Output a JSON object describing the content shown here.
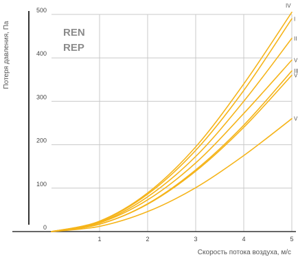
{
  "chart_data": {
    "type": "line",
    "xlabel": "Скорость потока воздуха, м/с",
    "ylabel": "Потеря давления, Па",
    "xlim": [
      0,
      5
    ],
    "ylim": [
      0,
      500
    ],
    "x_ticks": [
      "1",
      "2",
      "3",
      "4",
      "5"
    ],
    "y_ticks": [
      "0",
      "100",
      "200",
      "300",
      "400",
      "500"
    ],
    "grid": true,
    "annotation": [
      "REN",
      "REP"
    ],
    "line_color": "#f5b41a",
    "x": [
      0,
      1,
      2,
      3,
      4,
      5
    ],
    "series": [
      {
        "name": "IV",
        "values": [
          0,
          24,
          89,
          195,
          340,
          505
        ]
      },
      {
        "name": "I",
        "values": [
          0,
          23,
          86,
          187,
          325,
          490
        ]
      },
      {
        "name": "II",
        "values": [
          0,
          21,
          80,
          173,
          300,
          445
        ]
      },
      {
        "name": "V",
        "values": [
          0,
          20,
          73,
          158,
          272,
          395
        ]
      },
      {
        "name": "III",
        "values": [
          0,
          17,
          64,
          142,
          245,
          370
        ]
      },
      {
        "name": "VI",
        "values": [
          0,
          17,
          63,
          139,
          240,
          360
        ]
      },
      {
        "name": "VII",
        "values": [
          0,
          12,
          46,
          101,
          175,
          260
        ]
      }
    ]
  }
}
